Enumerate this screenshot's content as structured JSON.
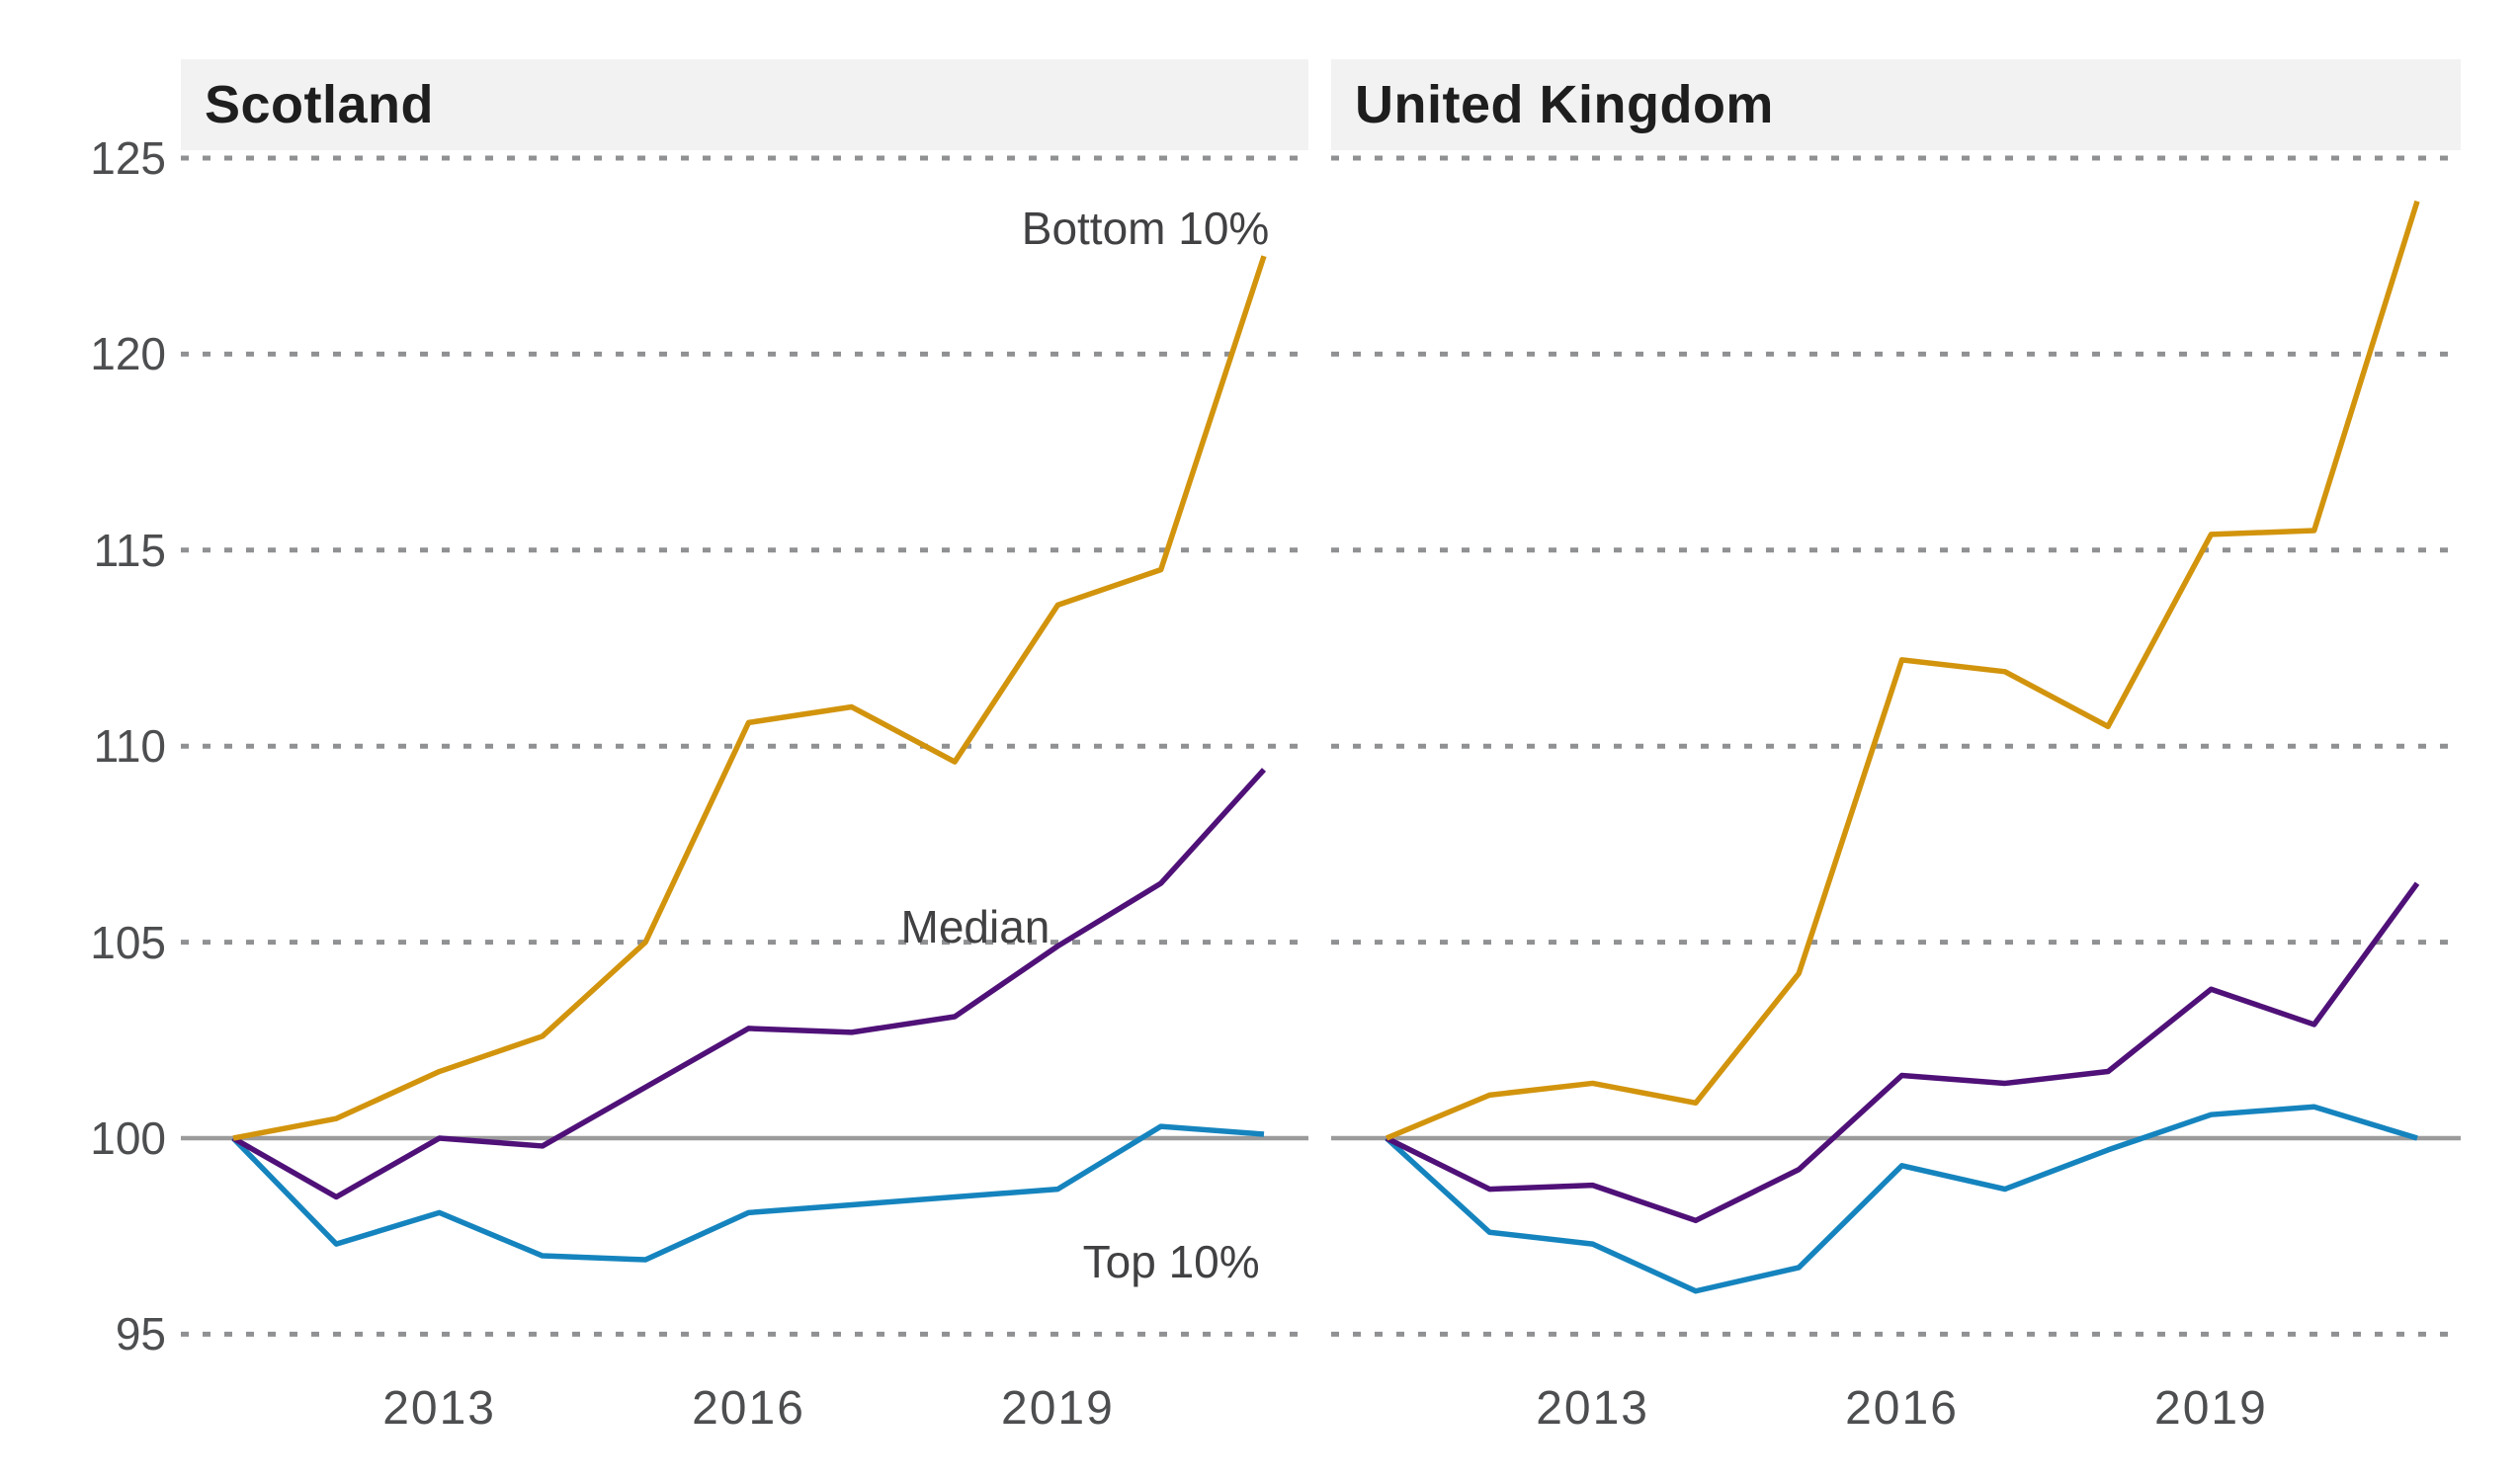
{
  "figure": {
    "background": "#ffffff",
    "grid_color": "#8f9193",
    "baseline_color": "#9b9b9b",
    "tick_text_color": "#4d4e50",
    "annotation_text_color": "#414042",
    "header_band_color": "#f2f2f2",
    "title_text_color": "#1e1e1e"
  },
  "y_axis": {
    "ticks": [
      125,
      120,
      115,
      110,
      105,
      100,
      95
    ],
    "baseline_value": 100
  },
  "x_axis": {
    "tick_years": [
      2013,
      2016,
      2019
    ]
  },
  "annotations": [
    {
      "text": "Bottom 10%",
      "chart": 0,
      "year": 2019.85,
      "value": 123.2
    },
    {
      "text": "Median",
      "chart": 0,
      "year": 2018.2,
      "value": 105.4
    },
    {
      "text": "Top 10%",
      "chart": 0,
      "year": 2020.1,
      "value": 96.85
    }
  ],
  "chart_data": [
    {
      "type": "line",
      "title": "Scotland",
      "x": [
        2011,
        2012,
        2013,
        2014,
        2015,
        2016,
        2017,
        2018,
        2019,
        2020,
        2021
      ],
      "ylim": [
        95,
        125
      ],
      "grid": "dotted horizontal",
      "legend_position": "inline-labels",
      "series": [
        {
          "name": "Bottom 10%",
          "color": "#d2940d",
          "values": [
            100,
            100.5,
            101.7,
            102.6,
            105.0,
            110.6,
            111.0,
            109.6,
            113.6,
            114.5,
            122.5
          ]
        },
        {
          "name": "Median",
          "color": "#4f1178",
          "values": [
            100,
            98.5,
            100.0,
            99.8,
            101.3,
            102.8,
            102.7,
            103.1,
            104.9,
            106.5,
            109.4
          ]
        },
        {
          "name": "Top 10%",
          "color": "#1584be",
          "values": [
            100,
            97.3,
            98.1,
            97.0,
            96.9,
            98.1,
            98.3,
            98.5,
            98.7,
            100.3,
            100.1
          ]
        }
      ]
    },
    {
      "type": "line",
      "title": "United Kingdom",
      "x": [
        2011,
        2012,
        2013,
        2014,
        2015,
        2016,
        2017,
        2018,
        2019,
        2020,
        2021
      ],
      "ylim": [
        95,
        125
      ],
      "grid": "dotted horizontal",
      "legend_position": "none",
      "series": [
        {
          "name": "Bottom 10%",
          "color": "#d2940d",
          "values": [
            100,
            101.1,
            101.4,
            100.9,
            104.2,
            112.2,
            111.9,
            110.5,
            115.4,
            115.5,
            123.9
          ]
        },
        {
          "name": "Median",
          "color": "#4f1178",
          "values": [
            100,
            98.7,
            98.8,
            97.9,
            99.2,
            101.6,
            101.4,
            101.7,
            103.8,
            102.9,
            106.5
          ]
        },
        {
          "name": "Top 10%",
          "color": "#1584be",
          "values": [
            100,
            97.6,
            97.3,
            96.1,
            96.7,
            99.3,
            98.7,
            99.7,
            100.6,
            100.8,
            100.0
          ]
        }
      ]
    }
  ]
}
